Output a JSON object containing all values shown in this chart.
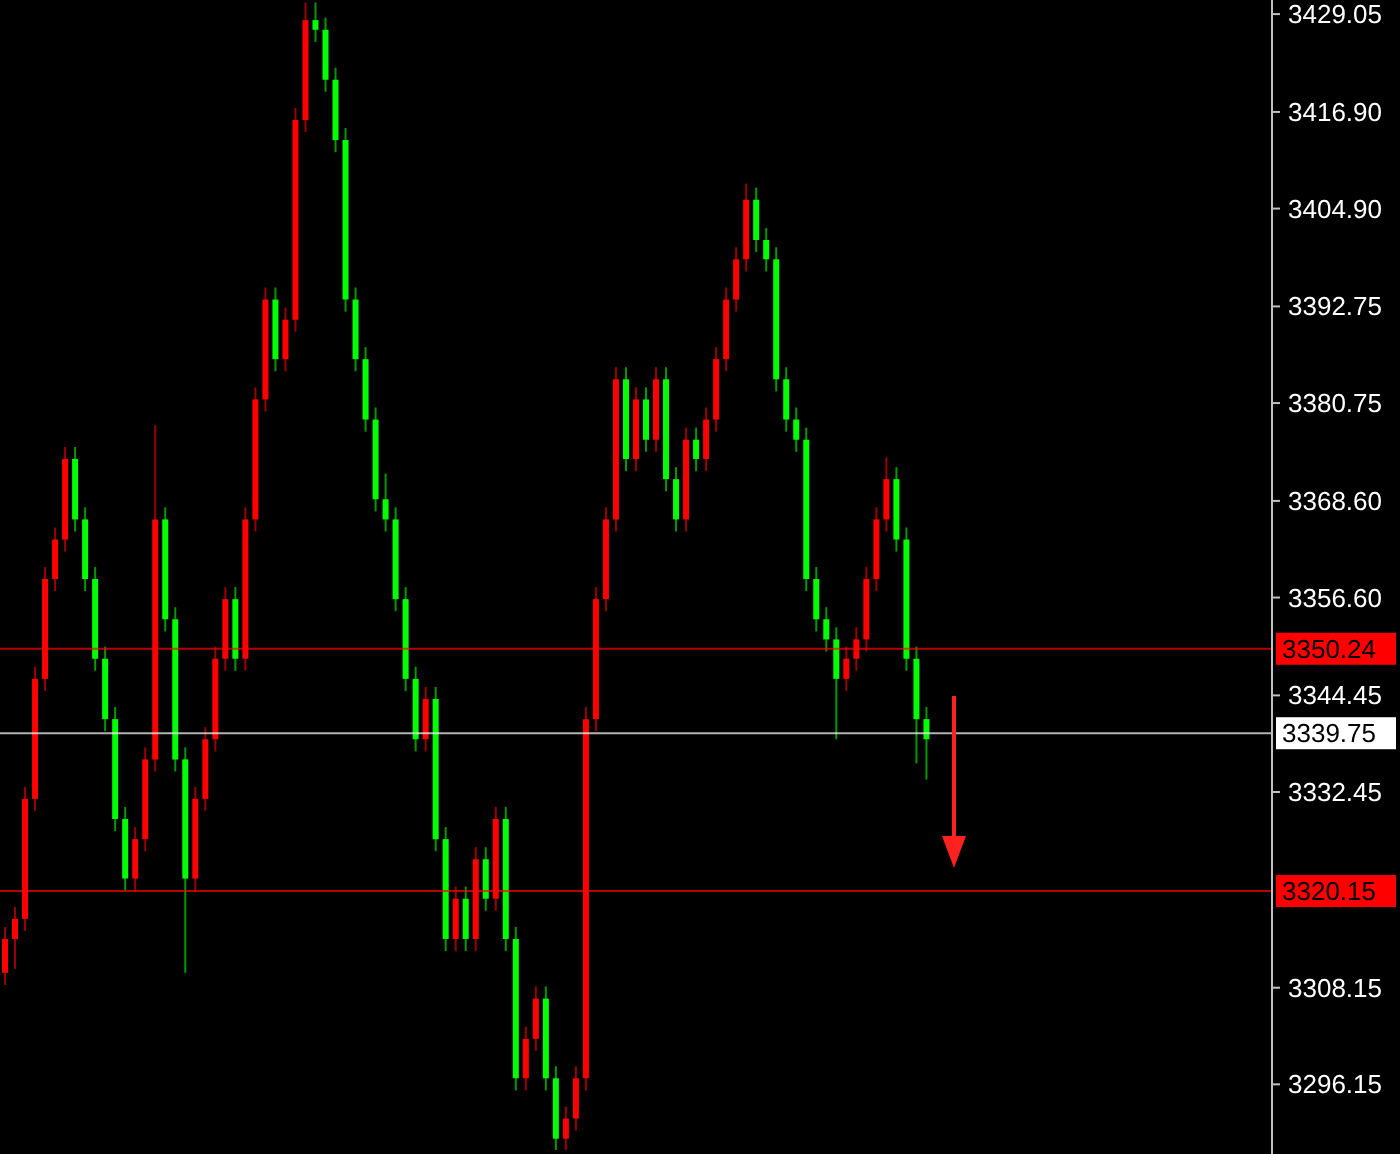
{
  "chart_data": {
    "type": "candlestick",
    "categories": [
      null,
      null,
      null,
      null,
      null,
      null,
      null,
      null,
      null,
      null,
      null,
      null,
      null,
      null,
      null,
      null,
      null,
      null,
      null,
      null,
      null,
      null,
      null,
      null,
      null,
      null,
      null,
      null,
      null,
      null,
      null,
      null,
      null,
      null,
      null,
      null,
      null,
      null,
      null,
      null,
      null,
      null,
      null,
      null,
      null,
      null,
      null,
      null,
      null,
      null,
      null,
      null,
      null,
      null,
      null,
      null,
      null,
      null,
      null,
      null,
      null,
      null,
      null,
      null,
      null,
      null,
      null,
      null,
      null,
      null,
      null,
      null,
      null,
      null,
      null,
      null,
      null,
      null,
      null,
      null,
      null,
      null,
      null,
      null,
      null,
      null,
      null,
      null,
      null,
      null,
      null,
      null,
      null,
      null,
      null,
      null,
      null,
      null,
      null,
      null,
      null,
      null,
      null,
      null,
      null,
      null,
      null,
      null,
      null,
      null,
      null,
      null,
      null,
      null,
      null,
      null,
      null,
      null,
      null,
      null,
      null,
      null,
      null,
      null,
      null,
      null,
      null
    ],
    "ohlc": [
      [
        3310.0,
        3315.7,
        3308.5,
        3314.2
      ],
      [
        3314.2,
        3318.2,
        3310.5,
        3316.7
      ],
      [
        3316.7,
        3333.1,
        3315.2,
        3331.6
      ],
      [
        3331.6,
        3348.0,
        3330.1,
        3346.5
      ],
      [
        3346.5,
        3360.4,
        3345.0,
        3358.9
      ],
      [
        3358.9,
        3365.3,
        3357.4,
        3363.8
      ],
      [
        3363.8,
        3375.3,
        3362.3,
        3373.8
      ],
      [
        3373.8,
        3375.3,
        3364.8,
        3366.3
      ],
      [
        3366.3,
        3367.8,
        3357.4,
        3358.9
      ],
      [
        3358.9,
        3360.4,
        3347.5,
        3349.0
      ],
      [
        3349.0,
        3350.5,
        3340.0,
        3341.5
      ],
      [
        3341.5,
        3343.0,
        3327.6,
        3329.1
      ],
      [
        3329.1,
        3330.6,
        3320.2,
        3321.7
      ],
      [
        3321.7,
        3328.1,
        3320.2,
        3326.6
      ],
      [
        3326.6,
        3338.0,
        3325.1,
        3336.5
      ],
      [
        3336.5,
        3378.0,
        3335.0,
        3366.3
      ],
      [
        3366.3,
        3367.8,
        3352.4,
        3353.9
      ],
      [
        3353.9,
        3355.4,
        3335.0,
        3336.5
      ],
      [
        3336.5,
        3338.0,
        3310.0,
        3321.7
      ],
      [
        3321.7,
        3333.1,
        3320.2,
        3331.6
      ],
      [
        3331.6,
        3340.5,
        3330.1,
        3339.0
      ],
      [
        3339.0,
        3350.5,
        3337.5,
        3349.0
      ],
      [
        3349.0,
        3357.9,
        3347.5,
        3356.4
      ],
      [
        3356.4,
        3357.9,
        3347.5,
        3349.0
      ],
      [
        3349.0,
        3367.8,
        3347.5,
        3366.3
      ],
      [
        3366.3,
        3382.7,
        3364.8,
        3381.2
      ],
      [
        3381.2,
        3395.1,
        3379.7,
        3393.6
      ],
      [
        3393.6,
        3395.1,
        3384.7,
        3386.2
      ],
      [
        3386.2,
        3392.6,
        3384.7,
        3391.1
      ],
      [
        3391.1,
        3417.4,
        3389.6,
        3415.9
      ],
      [
        3415.9,
        3430.5,
        3414.4,
        3428.3
      ],
      [
        3428.3,
        3430.5,
        3425.6,
        3427.1
      ],
      [
        3427.1,
        3428.6,
        3419.4,
        3420.9
      ],
      [
        3420.9,
        3422.4,
        3411.9,
        3413.4
      ],
      [
        3413.4,
        3414.9,
        3392.1,
        3393.6
      ],
      [
        3393.6,
        3395.1,
        3384.7,
        3386.2
      ],
      [
        3386.2,
        3387.7,
        3377.2,
        3378.7
      ],
      [
        3378.7,
        3380.2,
        3367.3,
        3368.8
      ],
      [
        3368.8,
        3372.0,
        3364.8,
        3366.3
      ],
      [
        3366.3,
        3367.8,
        3354.9,
        3356.4
      ],
      [
        3356.4,
        3357.9,
        3345.0,
        3346.5
      ],
      [
        3346.5,
        3348.0,
        3337.5,
        3339.0
      ],
      [
        3339.0,
        3345.5,
        3337.5,
        3344.0
      ],
      [
        3344.0,
        3345.5,
        3325.1,
        3326.6
      ],
      [
        3326.6,
        3328.1,
        3312.7,
        3314.2
      ],
      [
        3314.2,
        3320.7,
        3312.7,
        3319.2
      ],
      [
        3319.2,
        3320.7,
        3312.7,
        3314.2
      ],
      [
        3314.2,
        3325.6,
        3312.7,
        3324.1
      ],
      [
        3324.1,
        3325.6,
        3317.7,
        3319.2
      ],
      [
        3319.2,
        3330.6,
        3317.7,
        3329.1
      ],
      [
        3329.1,
        3330.6,
        3312.7,
        3314.2
      ],
      [
        3314.2,
        3315.7,
        3295.4,
        3296.9
      ],
      [
        3296.9,
        3303.3,
        3295.4,
        3301.8
      ],
      [
        3301.8,
        3308.3,
        3300.3,
        3306.8
      ],
      [
        3306.8,
        3308.3,
        3295.4,
        3296.9
      ],
      [
        3296.9,
        3298.4,
        3288.0,
        3289.4
      ],
      [
        3289.4,
        3293.4,
        3288.0,
        3291.9
      ],
      [
        3291.9,
        3298.4,
        3290.4,
        3296.9
      ],
      [
        3296.9,
        3343.0,
        3295.4,
        3341.5
      ],
      [
        3341.5,
        3357.9,
        3340.0,
        3356.4
      ],
      [
        3356.4,
        3367.8,
        3354.9,
        3366.3
      ],
      [
        3366.3,
        3385.2,
        3364.8,
        3383.7
      ],
      [
        3383.7,
        3385.2,
        3372.3,
        3373.8
      ],
      [
        3373.8,
        3382.7,
        3372.3,
        3381.2
      ],
      [
        3381.2,
        3382.7,
        3374.7,
        3376.2
      ],
      [
        3376.2,
        3385.2,
        3374.7,
        3383.7
      ],
      [
        3383.7,
        3385.2,
        3369.8,
        3371.3
      ],
      [
        3371.3,
        3372.8,
        3364.8,
        3366.3
      ],
      [
        3366.3,
        3377.7,
        3364.8,
        3376.2
      ],
      [
        3376.2,
        3377.7,
        3372.3,
        3373.8
      ],
      [
        3373.8,
        3380.2,
        3372.3,
        3378.7
      ],
      [
        3378.7,
        3387.7,
        3377.2,
        3386.2
      ],
      [
        3386.2,
        3395.1,
        3384.7,
        3393.6
      ],
      [
        3393.6,
        3400.1,
        3392.1,
        3398.6
      ],
      [
        3398.6,
        3408.0,
        3397.1,
        3406.0
      ],
      [
        3406.0,
        3407.5,
        3399.5,
        3401.0
      ],
      [
        3401.0,
        3402.5,
        3397.1,
        3398.6
      ],
      [
        3398.6,
        3400.1,
        3382.2,
        3383.7
      ],
      [
        3383.7,
        3385.2,
        3377.2,
        3378.7
      ],
      [
        3378.7,
        3380.2,
        3374.7,
        3376.2
      ],
      [
        3376.2,
        3377.7,
        3357.4,
        3358.9
      ],
      [
        3358.9,
        3360.4,
        3352.4,
        3353.9
      ],
      [
        3353.9,
        3355.4,
        3349.9,
        3351.4
      ],
      [
        3351.4,
        3352.9,
        3339.0,
        3346.5
      ],
      [
        3346.5,
        3350.5,
        3345.0,
        3349.0
      ],
      [
        3349.0,
        3352.9,
        3347.5,
        3351.4
      ],
      [
        3351.4,
        3360.4,
        3349.9,
        3358.9
      ],
      [
        3358.9,
        3367.8,
        3357.4,
        3366.3
      ],
      [
        3366.3,
        3374.0,
        3364.8,
        3371.3
      ],
      [
        3371.3,
        3372.8,
        3362.3,
        3363.8
      ],
      [
        3363.8,
        3365.3,
        3347.5,
        3349.0
      ],
      [
        3349.0,
        3350.5,
        3336.0,
        3341.5
      ],
      [
        3341.5,
        3343.0,
        3334.0,
        3339.0
      ],
      null,
      null,
      null,
      null,
      null,
      null,
      null,
      null,
      null,
      null,
      null,
      null,
      null,
      null,
      null,
      null,
      null,
      null,
      null,
      null,
      null,
      null,
      null,
      null,
      null,
      null,
      null,
      null,
      null,
      null,
      null,
      null,
      null,
      null
    ],
    "colors": [
      "#ff0000",
      "#ff0000",
      "#ff0000",
      "#ff0000",
      "#ff0000",
      "#ff0000",
      "#ff0000",
      "#00ff00",
      "#00ff00",
      "#00ff00",
      "#00ff00",
      "#00ff00",
      "#00ff00",
      "#ff0000",
      "#ff0000",
      "#ff0000",
      "#00ff00",
      "#00ff00",
      "#00ff00",
      "#ff0000",
      "#ff0000",
      "#ff0000",
      "#ff0000",
      "#00ff00",
      "#ff0000",
      "#ff0000",
      "#ff0000",
      "#00ff00",
      "#ff0000",
      "#ff0000",
      "#ff0000",
      "#00ff00",
      "#00ff00",
      "#00ff00",
      "#00ff00",
      "#00ff00",
      "#00ff00",
      "#00ff00",
      "#00ff00",
      "#00ff00",
      "#00ff00",
      "#00ff00",
      "#ff0000",
      "#00ff00",
      "#00ff00",
      "#ff0000",
      "#00ff00",
      "#ff0000",
      "#00ff00",
      "#ff0000",
      "#00ff00",
      "#00ff00",
      "#ff0000",
      "#ff0000",
      "#00ff00",
      "#00ff00",
      "#ff0000",
      "#ff0000",
      "#ff0000",
      "#ff0000",
      "#ff0000",
      "#ff0000",
      "#00ff00",
      "#ff0000",
      "#00ff00",
      "#ff0000",
      "#00ff00",
      "#00ff00",
      "#ff0000",
      "#00ff00",
      "#ff0000",
      "#ff0000",
      "#ff0000",
      "#ff0000",
      "#ff0000",
      "#00ff00",
      "#00ff00",
      "#00ff00",
      "#00ff00",
      "#00ff00",
      "#00ff00",
      "#00ff00",
      "#00ff00",
      "#00ff00",
      "#ff0000",
      "#ff0000",
      "#ff0000",
      "#ff0000",
      "#ff0000",
      "#00ff00",
      "#00ff00",
      "#00ff00",
      "#00ff00",
      null,
      null,
      null,
      null,
      null,
      null,
      null,
      null,
      null,
      null,
      null,
      null,
      null,
      null,
      null,
      null,
      null,
      null,
      null,
      null,
      null,
      null,
      null,
      null,
      null,
      null,
      null,
      null,
      null,
      null,
      null,
      null,
      null,
      null
    ],
    "ylim": [
      3287.5,
      3430.8
    ],
    "yticks": [
      3296.15,
      3308.15,
      3332.45,
      3344.45,
      {
        "value": 3356.6,
        "label": "3356.60"
      },
      {
        "value": 3368.6,
        "label": "3368.60"
      },
      3380.75,
      3392.75,
      {
        "value": 3404.9,
        "label": "3404.90"
      },
      {
        "value": 3416.9,
        "label": "3416.90"
      },
      3429.05
    ],
    "ref_lines": [
      {
        "axis": "y",
        "value": 3350.24,
        "label": "3350.24",
        "color": "#ff0000"
      },
      {
        "axis": "y",
        "value": 3339.75,
        "label": "3339.75",
        "color": "#ffffff"
      },
      {
        "axis": "y",
        "value": 3320.15,
        "label": "3320.15",
        "color": "#ff0000"
      }
    ],
    "tick_labels": "y"
  }
}
